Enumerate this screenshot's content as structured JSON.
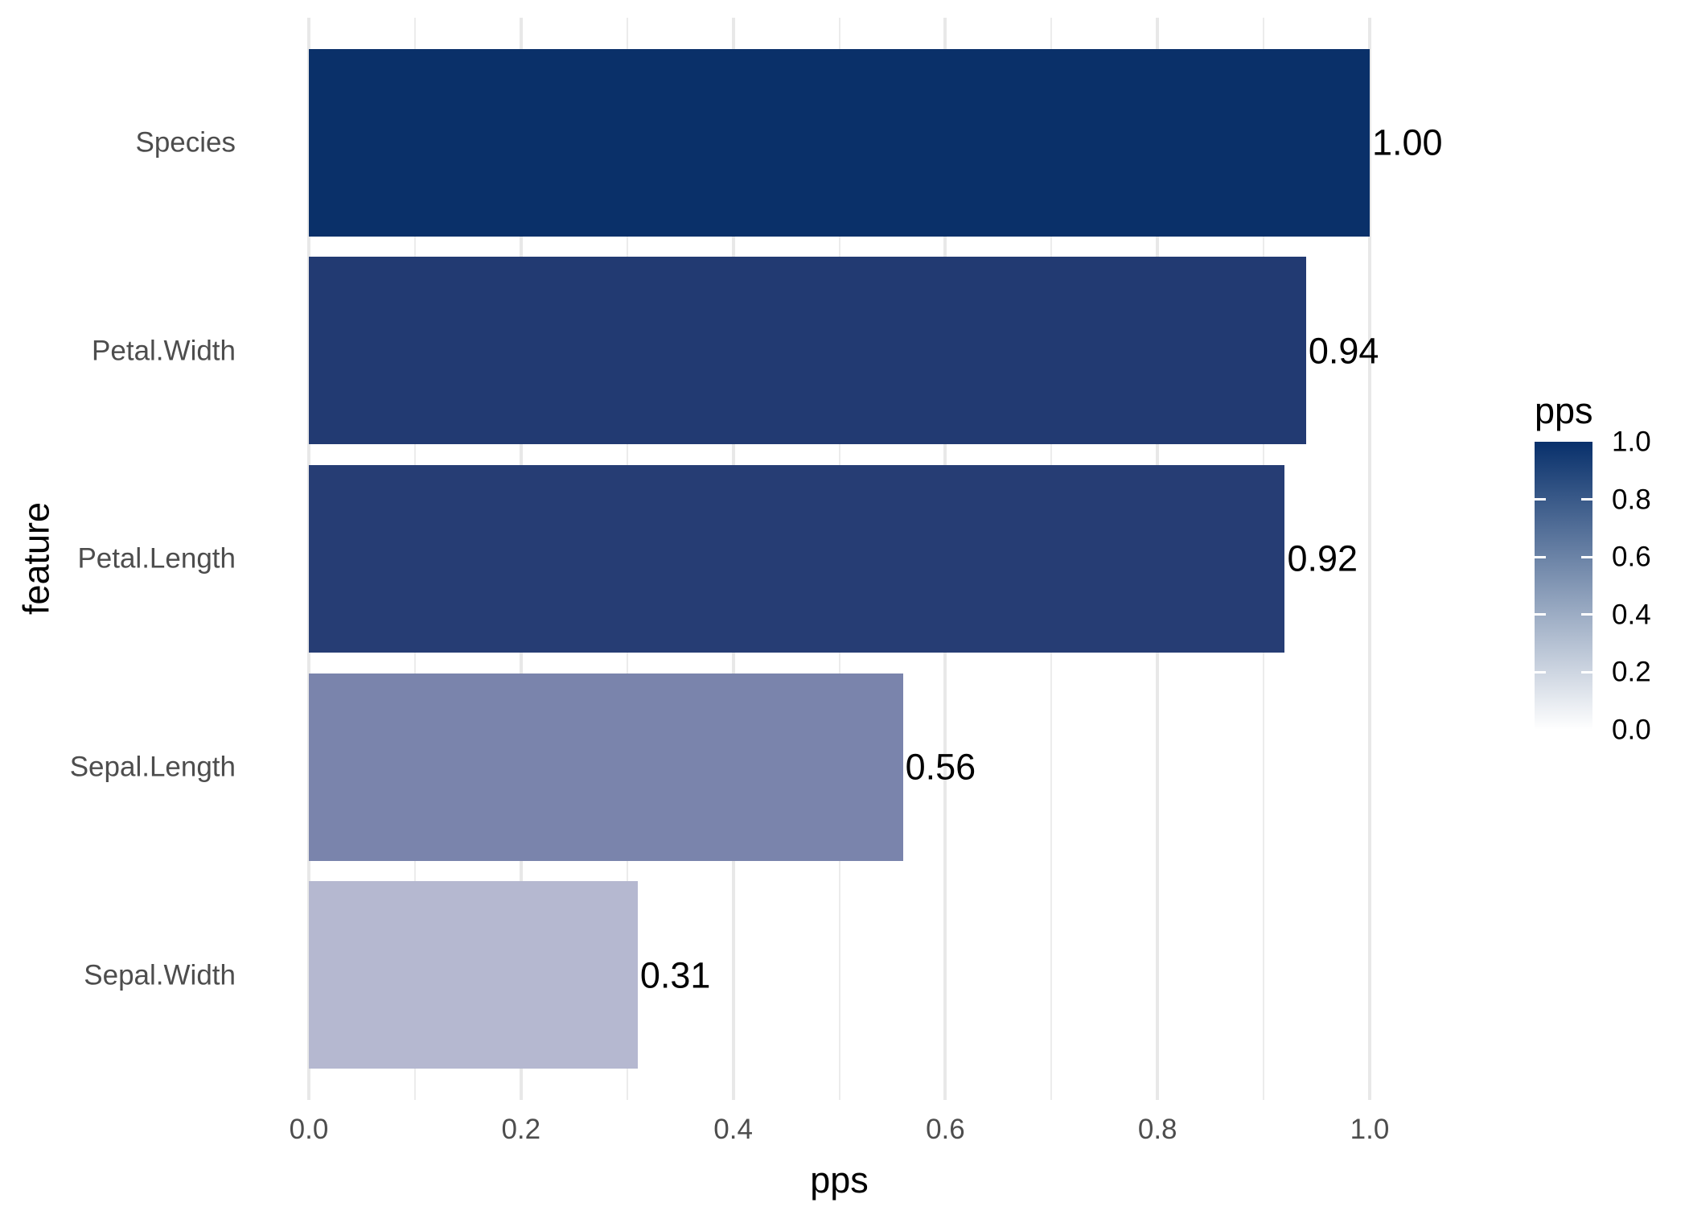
{
  "chart_data": {
    "type": "bar",
    "orientation": "horizontal",
    "xlabel": "pps",
    "ylabel": "feature",
    "categories": [
      "Species",
      "Petal.Width",
      "Petal.Length",
      "Sepal.Length",
      "Sepal.Width"
    ],
    "values": [
      1.0,
      0.94,
      0.92,
      0.56,
      0.31
    ],
    "value_labels": [
      "1.00",
      "0.94",
      "0.92",
      "0.56",
      "0.31"
    ],
    "bar_colors": [
      "#0A3069",
      "#223A72",
      "#263D74",
      "#7A84AC",
      "#B5B8D0"
    ],
    "xlim": [
      0,
      1
    ],
    "x_ticks": [
      {
        "label": "0.0",
        "value": 0.0
      },
      {
        "label": "0.2",
        "value": 0.2
      },
      {
        "label": "0.4",
        "value": 0.4
      },
      {
        "label": "0.6",
        "value": 0.6
      },
      {
        "label": "0.8",
        "value": 0.8
      },
      {
        "label": "1.0",
        "value": 1.0
      }
    ],
    "minor_grid_values": [
      0.1,
      0.3,
      0.5,
      0.7,
      0.9
    ],
    "grid": true,
    "background_color": "#FFFFFF",
    "gridline_color": "#E8E8E8",
    "axis_text_color": "#4D4D4D",
    "label_text_color": "#000000",
    "legend": {
      "title": "pps",
      "position": "right",
      "type": "colorbar",
      "gradient_high": "#08306B",
      "gradient_low": "#FFFFFF",
      "ticks": [
        {
          "label": "1.0",
          "value": 1.0
        },
        {
          "label": "0.8",
          "value": 0.8
        },
        {
          "label": "0.6",
          "value": 0.6
        },
        {
          "label": "0.4",
          "value": 0.4
        },
        {
          "label": "0.2",
          "value": 0.2
        },
        {
          "label": "0.0",
          "value": 0.0
        }
      ],
      "tick_mark_values": [
        0.8,
        0.6,
        0.4,
        0.2
      ]
    }
  }
}
